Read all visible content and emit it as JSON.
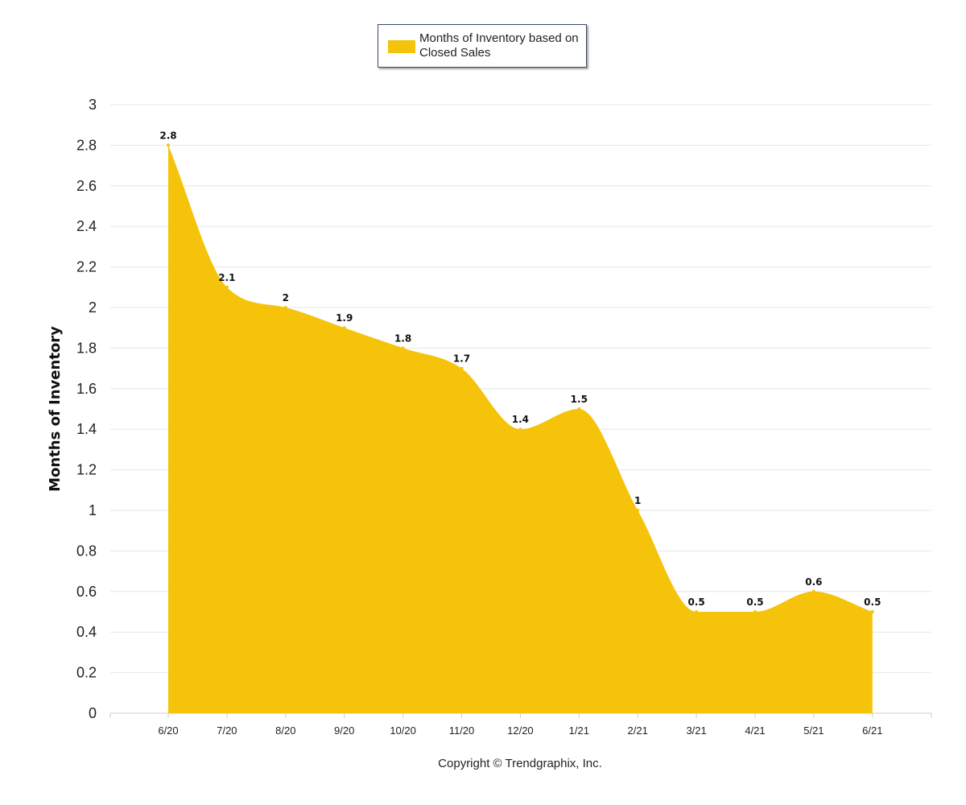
{
  "chart_data": {
    "type": "area",
    "title": "",
    "xlabel": "",
    "ylabel": "Months of Inventory",
    "ylim": [
      0,
      3
    ],
    "yticks": [
      "0",
      "0.2",
      "0.4",
      "0.6",
      "0.8",
      "1",
      "1.2",
      "1.4",
      "1.6",
      "1.8",
      "2",
      "2.2",
      "2.4",
      "2.6",
      "2.8",
      "3"
    ],
    "grid": true,
    "legend_position": "top-center",
    "categories": [
      "6/20",
      "7/20",
      "8/20",
      "9/20",
      "10/20",
      "11/20",
      "12/20",
      "1/21",
      "2/21",
      "3/21",
      "4/21",
      "5/21",
      "6/21"
    ],
    "series": [
      {
        "name": "Months of Inventory based on Closed Sales",
        "color": "#F5C30A",
        "values": [
          2.8,
          2.1,
          2,
          1.9,
          1.8,
          1.7,
          1.4,
          1.5,
          1,
          0.5,
          0.5,
          0.6,
          0.5
        ],
        "labels": [
          "2.8",
          "2.1",
          "2",
          "1.9",
          "1.8",
          "1.7",
          "1.4",
          "1.5",
          "1",
          "0.5",
          "0.5",
          "0.6",
          "0.5"
        ]
      }
    ]
  },
  "legend": {
    "label": "Months of Inventory based on Closed Sales"
  },
  "footer": {
    "copyright": "Copyright © Trendgraphix, Inc."
  },
  "colors": {
    "area": "#F5C30A",
    "grid": "#e6e6e6",
    "axis": "#cccccc"
  }
}
